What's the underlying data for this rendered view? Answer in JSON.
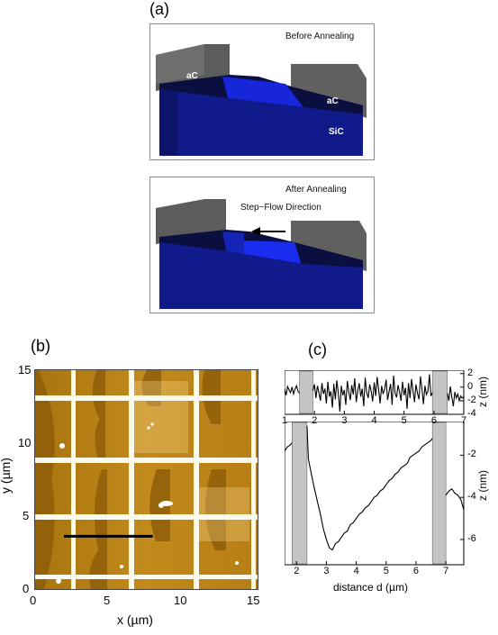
{
  "panel_a": {
    "label": "(a)",
    "top": {
      "title": "Before Annealing",
      "ac_left": "aC",
      "ac_right": "aC",
      "sic": "SiC"
    },
    "bottom": {
      "title": "After Annealing",
      "flow": "Step−Flow Direction"
    }
  },
  "panel_b": {
    "label": "(b)",
    "xlabel": "x (µm)",
    "ylabel": "y (µm)",
    "xticks": [
      "0",
      "5",
      "10",
      "15"
    ],
    "yticks": [
      "15",
      "10",
      "5",
      "0"
    ],
    "line_profile": {
      "x_start_um": 2,
      "x_end_um": 8,
      "y_um": 3.5
    }
  },
  "panel_c": {
    "label": "(c)",
    "top": {
      "xticks": [
        "1",
        "2",
        "3",
        "4",
        "5",
        "6",
        "7"
      ],
      "yticks": [
        "2",
        "0",
        "-2",
        "-4"
      ],
      "ylabel": "z (nm)",
      "xlim": [
        1,
        7
      ],
      "ylim": [
        -4,
        2.5
      ],
      "shaded": [
        [
          1.5,
          1.95
        ],
        [
          5.95,
          6.45
        ]
      ]
    },
    "bottom": {
      "xticks": [
        "2",
        "3",
        "4",
        "5",
        "6",
        "7"
      ],
      "yticks": [
        "-2",
        "-4",
        "-6"
      ],
      "ylabel": "z (nm)",
      "xlabel": "distance d (µm)",
      "xlim": [
        1.6,
        7.6
      ],
      "ylim": [
        -7.2,
        -0.4
      ],
      "shaded": [
        [
          1.85,
          2.35
        ],
        [
          6.55,
          7.0
        ]
      ]
    }
  },
  "chart_data": [
    {
      "type": "line",
      "x": [
        1.0,
        1.05,
        1.1,
        1.15,
        1.2,
        1.25,
        1.3,
        1.35,
        1.4,
        1.45,
        1.5,
        1.95,
        2.0,
        2.05,
        2.1,
        2.15,
        2.2,
        2.25,
        2.3,
        2.35,
        2.4,
        2.45,
        2.5,
        2.55,
        2.6,
        2.65,
        2.7,
        2.75,
        2.8,
        2.85,
        2.9,
        2.95,
        3.0,
        3.05,
        3.1,
        3.15,
        3.2,
        3.25,
        3.3,
        3.35,
        3.4,
        3.45,
        3.5,
        3.55,
        3.6,
        3.65,
        3.7,
        3.75,
        3.8,
        3.85,
        3.9,
        3.95,
        4.0,
        4.05,
        4.1,
        4.15,
        4.2,
        4.25,
        4.3,
        4.35,
        4.4,
        4.45,
        4.5,
        4.55,
        4.6,
        4.65,
        4.7,
        4.75,
        4.8,
        4.85,
        4.9,
        4.95,
        5.0,
        5.05,
        5.1,
        5.15,
        5.2,
        5.25,
        5.3,
        5.35,
        5.4,
        5.45,
        5.5,
        5.55,
        5.6,
        5.65,
        5.7,
        5.75,
        5.8,
        5.85,
        5.9,
        5.95,
        6.45,
        6.5,
        6.55,
        6.6,
        6.65,
        6.7,
        6.75,
        6.8,
        6.85,
        6.9,
        6.95,
        7.0
      ],
      "y": [
        -0.2,
        -1.2,
        0.1,
        -0.4,
        -0.8,
        0.0,
        -1.0,
        -0.3,
        0.2,
        -0.6,
        -0.9,
        -0.5,
        0.4,
        -1.6,
        0.2,
        -0.8,
        -2.0,
        0.6,
        -1.0,
        -0.2,
        -2.4,
        0.8,
        -1.4,
        -0.6,
        -3.0,
        0.5,
        -1.8,
        1.0,
        -0.9,
        -3.6,
        0.2,
        -1.2,
        -0.4,
        -2.6,
        0.9,
        -0.7,
        -1.9,
        0.3,
        -1.1,
        1.3,
        -2.2,
        -0.5,
        0.6,
        -1.4,
        -0.2,
        -2.8,
        1.4,
        -0.8,
        -1.6,
        0.4,
        -0.6,
        -2.1,
        0.7,
        -1.3,
        1.5,
        -0.4,
        -2.4,
        0.2,
        -1.0,
        -0.3,
        1.1,
        -1.9,
        -0.6,
        0.5,
        -2.6,
        1.7,
        -0.9,
        -1.5,
        0.3,
        -0.7,
        -2.0,
        0.8,
        -1.2,
        -0.1,
        -3.2,
        0.6,
        -1.6,
        1.2,
        -0.5,
        -2.2,
        0.4,
        -0.9,
        -1.8,
        1.6,
        -0.3,
        -2.5,
        0.2,
        -1.1,
        -0.6,
        1.9,
        -1.3,
        -0.8,
        -0.9,
        -2.0,
        0.1,
        -1.4,
        -2.8,
        -0.7,
        -1.6,
        -1.0,
        -2.0,
        -1.3,
        -1.6,
        -1.4
      ],
      "xlabel": "",
      "ylabel": "z (nm)"
    },
    {
      "type": "line",
      "x": [
        1.6,
        1.7,
        1.8,
        1.85,
        2.35,
        2.4,
        2.5,
        2.6,
        2.7,
        2.8,
        2.9,
        3.0,
        3.1,
        3.2,
        3.3,
        3.4,
        3.5,
        3.6,
        3.7,
        3.8,
        3.9,
        4.0,
        4.1,
        4.2,
        4.3,
        4.4,
        4.5,
        4.6,
        4.7,
        4.8,
        4.9,
        5.0,
        5.1,
        5.2,
        5.3,
        5.4,
        5.5,
        5.6,
        5.7,
        5.8,
        5.9,
        6.0,
        6.1,
        6.2,
        6.3,
        6.4,
        6.5,
        6.55,
        7.0,
        7.1,
        7.2,
        7.3,
        7.4,
        7.5,
        7.6
      ],
      "y": [
        -1.8,
        -1.6,
        -1.5,
        -1.4,
        -0.6,
        -2.2,
        -2.9,
        -3.6,
        -4.2,
        -4.8,
        -5.5,
        -6.0,
        -6.4,
        -6.5,
        -6.2,
        -6.1,
        -5.9,
        -5.7,
        -5.6,
        -5.3,
        -5.2,
        -5.0,
        -4.8,
        -4.7,
        -4.5,
        -4.4,
        -4.2,
        -4.0,
        -3.9,
        -3.7,
        -3.6,
        -3.4,
        -3.2,
        -3.1,
        -2.9,
        -2.8,
        -2.6,
        -2.5,
        -2.4,
        -2.1,
        -2.0,
        -1.9,
        -1.8,
        -1.6,
        -1.5,
        -1.4,
        -1.3,
        -1.2,
        -3.9,
        -3.7,
        -3.6,
        -3.8,
        -3.9,
        -4.1,
        -4.6
      ],
      "xlabel": "distance d (µm)",
      "ylabel": "z (nm)"
    }
  ]
}
